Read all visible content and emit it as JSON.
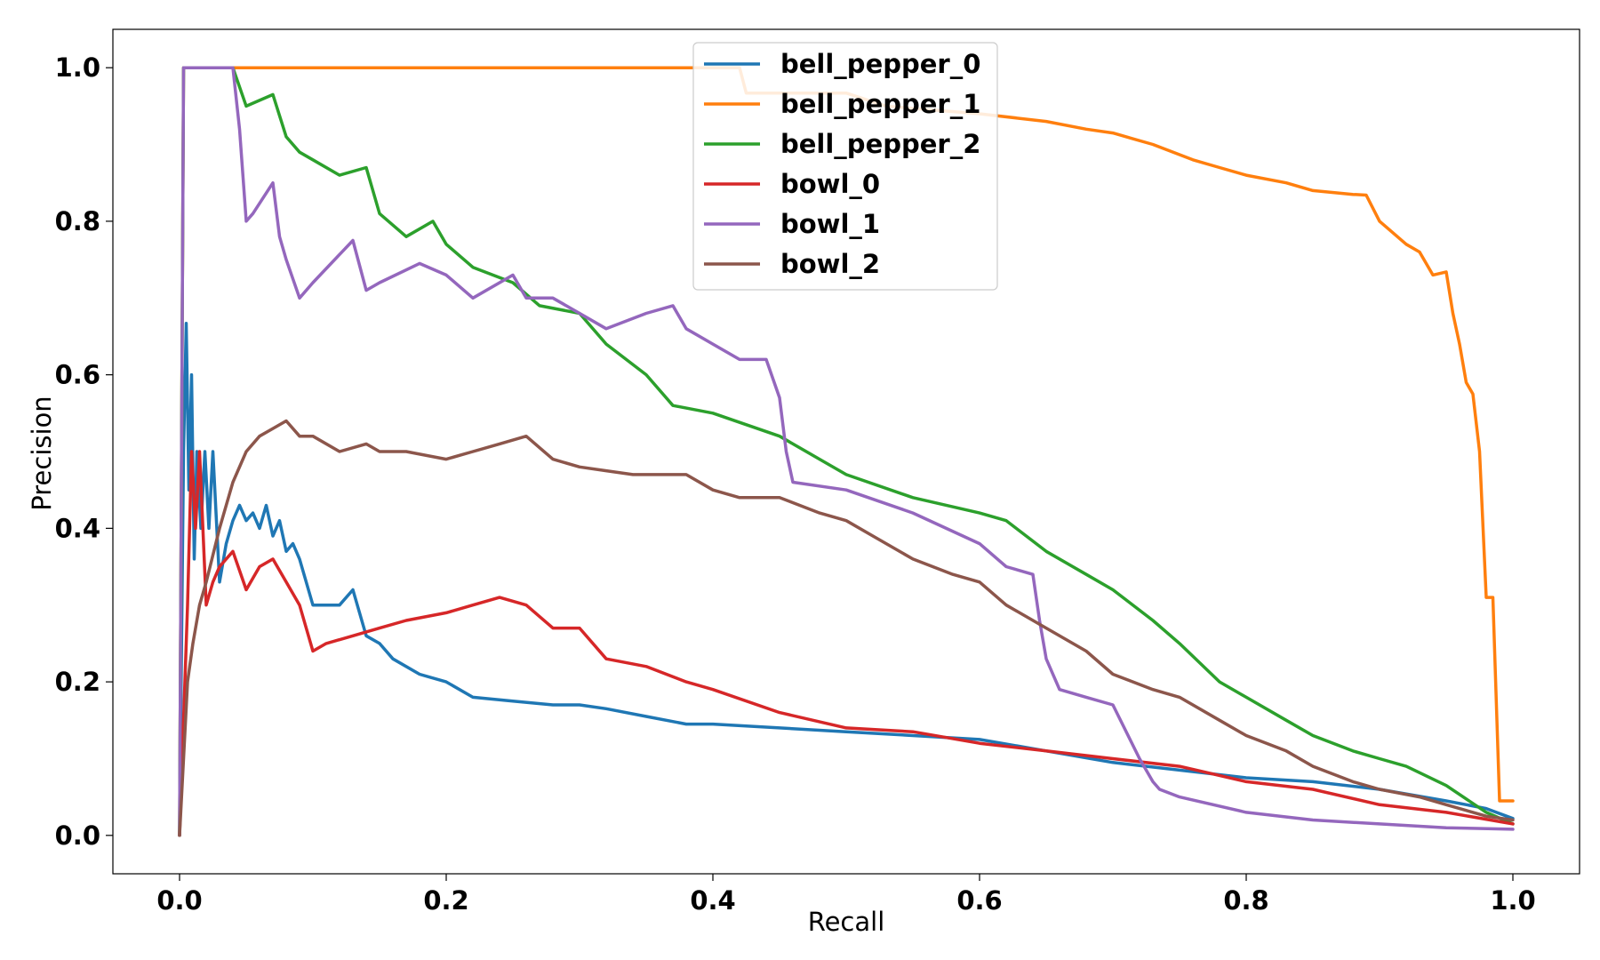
{
  "chart_data": {
    "type": "line",
    "title": "",
    "xlabel": "Recall",
    "ylabel": "Precision",
    "xlim": [
      -0.05,
      1.05
    ],
    "ylim": [
      -0.05,
      1.05
    ],
    "xticks": [
      0.0,
      0.2,
      0.4,
      0.6,
      0.8,
      1.0
    ],
    "xtick_labels": [
      "0.0",
      "0.2",
      "0.4",
      "0.6",
      "0.8",
      "1.0"
    ],
    "yticks": [
      0.0,
      0.2,
      0.4,
      0.6,
      0.8,
      1.0
    ],
    "ytick_labels": [
      "0.0",
      "0.2",
      "0.4",
      "0.6",
      "0.8",
      "1.0"
    ],
    "grid": false,
    "legend_position": "top-center",
    "series": [
      {
        "name": "bell_pepper_0",
        "color": "#1f77b4",
        "x": [
          0.0,
          0.003,
          0.005,
          0.007,
          0.009,
          0.011,
          0.013,
          0.016,
          0.019,
          0.022,
          0.025,
          0.03,
          0.035,
          0.04,
          0.045,
          0.05,
          0.055,
          0.06,
          0.065,
          0.07,
          0.075,
          0.08,
          0.085,
          0.09,
          0.1,
          0.11,
          0.12,
          0.13,
          0.14,
          0.15,
          0.16,
          0.18,
          0.2,
          0.22,
          0.25,
          0.28,
          0.3,
          0.32,
          0.35,
          0.38,
          0.4,
          0.45,
          0.5,
          0.55,
          0.6,
          0.65,
          0.7,
          0.75,
          0.8,
          0.85,
          0.9,
          0.95,
          0.98,
          1.0
        ],
        "y": [
          0.0,
          0.5,
          0.667,
          0.45,
          0.6,
          0.36,
          0.5,
          0.4,
          0.5,
          0.4,
          0.5,
          0.33,
          0.38,
          0.41,
          0.43,
          0.41,
          0.42,
          0.4,
          0.43,
          0.39,
          0.41,
          0.37,
          0.38,
          0.36,
          0.3,
          0.3,
          0.3,
          0.32,
          0.26,
          0.25,
          0.23,
          0.21,
          0.2,
          0.18,
          0.175,
          0.17,
          0.17,
          0.165,
          0.155,
          0.145,
          0.145,
          0.14,
          0.135,
          0.13,
          0.125,
          0.11,
          0.095,
          0.085,
          0.075,
          0.07,
          0.06,
          0.045,
          0.035,
          0.022
        ]
      },
      {
        "name": "bell_pepper_1",
        "color": "#ff7f0e",
        "x": [
          0.0,
          0.003,
          0.1,
          0.2,
          0.3,
          0.4,
          0.42,
          0.425,
          0.5,
          0.53,
          0.6,
          0.65,
          0.68,
          0.7,
          0.73,
          0.76,
          0.78,
          0.8,
          0.83,
          0.85,
          0.88,
          0.89,
          0.9,
          0.92,
          0.93,
          0.94,
          0.95,
          0.955,
          0.96,
          0.965,
          0.97,
          0.975,
          0.98,
          0.985,
          0.99,
          0.995,
          1.0
        ],
        "y": [
          0.0,
          1.0,
          1.0,
          1.0,
          1.0,
          1.0,
          1.0,
          0.967,
          0.967,
          0.95,
          0.94,
          0.93,
          0.92,
          0.915,
          0.9,
          0.88,
          0.87,
          0.86,
          0.85,
          0.84,
          0.835,
          0.834,
          0.8,
          0.77,
          0.76,
          0.73,
          0.734,
          0.68,
          0.64,
          0.59,
          0.575,
          0.5,
          0.31,
          0.31,
          0.045,
          0.045,
          0.045
        ]
      },
      {
        "name": "bell_pepper_2",
        "color": "#2ca02c",
        "x": [
          0.0,
          0.003,
          0.04,
          0.05,
          0.07,
          0.08,
          0.09,
          0.1,
          0.12,
          0.14,
          0.15,
          0.17,
          0.19,
          0.2,
          0.22,
          0.25,
          0.27,
          0.3,
          0.32,
          0.35,
          0.37,
          0.4,
          0.45,
          0.48,
          0.5,
          0.55,
          0.6,
          0.62,
          0.65,
          0.68,
          0.7,
          0.73,
          0.75,
          0.78,
          0.8,
          0.83,
          0.85,
          0.88,
          0.9,
          0.92,
          0.95,
          0.98,
          1.0
        ],
        "y": [
          0.0,
          1.0,
          1.0,
          0.95,
          0.965,
          0.91,
          0.89,
          0.88,
          0.86,
          0.87,
          0.81,
          0.78,
          0.8,
          0.77,
          0.74,
          0.72,
          0.69,
          0.68,
          0.64,
          0.6,
          0.56,
          0.55,
          0.52,
          0.49,
          0.47,
          0.44,
          0.42,
          0.41,
          0.37,
          0.34,
          0.32,
          0.28,
          0.25,
          0.2,
          0.18,
          0.15,
          0.13,
          0.11,
          0.1,
          0.09,
          0.065,
          0.03,
          0.015
        ]
      },
      {
        "name": "bowl_0",
        "color": "#d62728",
        "x": [
          0.0,
          0.003,
          0.006,
          0.009,
          0.012,
          0.015,
          0.02,
          0.025,
          0.03,
          0.04,
          0.05,
          0.06,
          0.07,
          0.08,
          0.09,
          0.1,
          0.11,
          0.13,
          0.15,
          0.17,
          0.2,
          0.22,
          0.24,
          0.26,
          0.28,
          0.3,
          0.32,
          0.35,
          0.38,
          0.4,
          0.45,
          0.5,
          0.55,
          0.6,
          0.65,
          0.7,
          0.75,
          0.8,
          0.85,
          0.9,
          0.95,
          1.0
        ],
        "y": [
          0.0,
          0.15,
          0.3,
          0.5,
          0.4,
          0.5,
          0.3,
          0.33,
          0.35,
          0.37,
          0.32,
          0.35,
          0.36,
          0.33,
          0.3,
          0.24,
          0.25,
          0.26,
          0.27,
          0.28,
          0.29,
          0.3,
          0.31,
          0.3,
          0.27,
          0.27,
          0.23,
          0.22,
          0.2,
          0.19,
          0.16,
          0.14,
          0.135,
          0.12,
          0.11,
          0.1,
          0.09,
          0.07,
          0.06,
          0.04,
          0.03,
          0.015
        ]
      },
      {
        "name": "bowl_1",
        "color": "#9467bd",
        "x": [
          0.0,
          0.003,
          0.04,
          0.045,
          0.05,
          0.055,
          0.07,
          0.075,
          0.08,
          0.09,
          0.1,
          0.13,
          0.14,
          0.15,
          0.18,
          0.2,
          0.22,
          0.25,
          0.26,
          0.28,
          0.3,
          0.32,
          0.35,
          0.37,
          0.38,
          0.4,
          0.42,
          0.44,
          0.45,
          0.455,
          0.46,
          0.5,
          0.55,
          0.6,
          0.62,
          0.64,
          0.645,
          0.65,
          0.66,
          0.68,
          0.7,
          0.72,
          0.73,
          0.735,
          0.75,
          0.8,
          0.85,
          0.9,
          0.95,
          1.0
        ],
        "y": [
          0.0,
          1.0,
          1.0,
          0.92,
          0.8,
          0.81,
          0.85,
          0.78,
          0.75,
          0.7,
          0.72,
          0.775,
          0.71,
          0.72,
          0.745,
          0.73,
          0.7,
          0.73,
          0.7,
          0.7,
          0.68,
          0.66,
          0.68,
          0.69,
          0.66,
          0.64,
          0.62,
          0.62,
          0.57,
          0.5,
          0.46,
          0.45,
          0.42,
          0.38,
          0.35,
          0.34,
          0.28,
          0.23,
          0.19,
          0.18,
          0.17,
          0.1,
          0.07,
          0.06,
          0.05,
          0.03,
          0.02,
          0.015,
          0.01,
          0.008
        ]
      },
      {
        "name": "bowl_2",
        "color": "#8c564b",
        "x": [
          0.0,
          0.003,
          0.006,
          0.01,
          0.015,
          0.02,
          0.03,
          0.04,
          0.05,
          0.06,
          0.07,
          0.08,
          0.09,
          0.1,
          0.12,
          0.14,
          0.15,
          0.17,
          0.2,
          0.22,
          0.24,
          0.26,
          0.28,
          0.3,
          0.32,
          0.34,
          0.36,
          0.38,
          0.4,
          0.42,
          0.45,
          0.48,
          0.5,
          0.52,
          0.55,
          0.58,
          0.6,
          0.62,
          0.65,
          0.68,
          0.7,
          0.73,
          0.75,
          0.78,
          0.8,
          0.83,
          0.85,
          0.88,
          0.9,
          0.93,
          0.95,
          0.98,
          1.0
        ],
        "y": [
          0.0,
          0.1,
          0.2,
          0.25,
          0.3,
          0.33,
          0.4,
          0.46,
          0.5,
          0.52,
          0.53,
          0.54,
          0.52,
          0.52,
          0.5,
          0.51,
          0.5,
          0.5,
          0.49,
          0.5,
          0.51,
          0.52,
          0.49,
          0.48,
          0.475,
          0.47,
          0.47,
          0.47,
          0.45,
          0.44,
          0.44,
          0.42,
          0.41,
          0.39,
          0.36,
          0.34,
          0.33,
          0.3,
          0.27,
          0.24,
          0.21,
          0.19,
          0.18,
          0.15,
          0.13,
          0.11,
          0.09,
          0.07,
          0.06,
          0.05,
          0.04,
          0.025,
          0.02
        ]
      }
    ]
  }
}
